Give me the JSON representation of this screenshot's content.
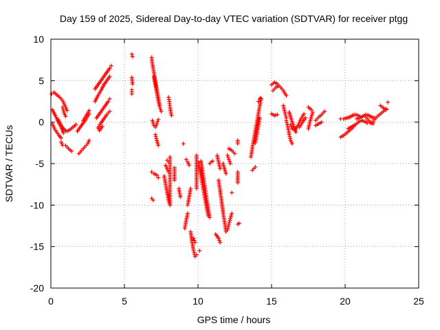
{
  "chart_data": {
    "type": "scatter",
    "title": "Day 159 of 2025, Sidereal Day-to-day VTEC variation (SDTVAR) for receiver ptgg",
    "xlabel": "GPS time / hours",
    "ylabel": "SDTVAR / TECUs",
    "xlim": [
      0,
      25
    ],
    "ylim": [
      -20,
      10
    ],
    "xticks": [
      0,
      5,
      10,
      15,
      20,
      25
    ],
    "yticks": [
      -20,
      -15,
      -10,
      -5,
      0,
      5,
      10
    ],
    "grid": true,
    "marker": "+",
    "series_color": "#ff0000",
    "segments": [
      [
        [
          0.05,
          3.4
        ],
        [
          0.2,
          3.6
        ],
        [
          0.4,
          3.3
        ],
        [
          0.6,
          3.0
        ],
        [
          0.8,
          2.6
        ],
        [
          0.95,
          2.0
        ],
        [
          1.1,
          1.4
        ]
      ],
      [
        [
          0.1,
          1.5
        ],
        [
          0.3,
          0.8
        ],
        [
          0.5,
          0.0
        ],
        [
          0.7,
          -0.6
        ],
        [
          0.85,
          -1.3
        ]
      ],
      [
        [
          0.1,
          -0.2
        ],
        [
          0.25,
          -0.8
        ],
        [
          0.4,
          -1.2
        ],
        [
          0.55,
          -1.6
        ],
        [
          0.7,
          -1.9
        ]
      ],
      [
        [
          0.7,
          -2.4
        ],
        [
          0.8,
          -2.8
        ]
      ],
      [
        [
          0.5,
          0.3
        ],
        [
          0.7,
          -0.4
        ],
        [
          0.9,
          -0.9
        ],
        [
          1.1,
          -1.1
        ],
        [
          1.3,
          -0.9
        ],
        [
          1.5,
          -0.6
        ],
        [
          1.7,
          -0.3
        ]
      ],
      [
        [
          0.8,
          1.8
        ],
        [
          0.9,
          1.1
        ],
        [
          1.0,
          0.7
        ]
      ],
      [
        [
          1.0,
          -2.8
        ],
        [
          1.2,
          -3.2
        ],
        [
          1.4,
          -3.5
        ]
      ],
      [
        [
          1.8,
          -1.1
        ],
        [
          2.0,
          -0.6
        ],
        [
          2.2,
          -0.1
        ],
        [
          2.4,
          0.4
        ],
        [
          2.6,
          1.0
        ]
      ],
      [
        [
          1.9,
          -3.8
        ],
        [
          2.1,
          -3.4
        ],
        [
          2.3,
          -3.0
        ],
        [
          2.5,
          -2.6
        ],
        [
          2.6,
          -2.2
        ]
      ],
      [
        [
          2.2,
          0.2
        ],
        [
          2.4,
          0.8
        ],
        [
          2.6,
          1.4
        ]
      ],
      [
        [
          3.0,
          4.0
        ],
        [
          3.2,
          4.5
        ],
        [
          3.4,
          5.0
        ],
        [
          3.6,
          5.5
        ],
        [
          3.8,
          6.0
        ],
        [
          4.0,
          6.5
        ],
        [
          4.1,
          6.8
        ]
      ],
      [
        [
          3.0,
          2.5
        ],
        [
          3.2,
          3.2
        ],
        [
          3.4,
          3.8
        ],
        [
          3.6,
          4.5
        ],
        [
          3.8,
          5.0
        ],
        [
          4.0,
          5.5
        ]
      ],
      [
        [
          3.1,
          0.5
        ],
        [
          3.3,
          1.0
        ],
        [
          3.5,
          1.5
        ],
        [
          3.7,
          2.0
        ],
        [
          3.9,
          2.5
        ],
        [
          4.0,
          2.8
        ]
      ],
      [
        [
          3.2,
          -0.7
        ],
        [
          3.4,
          -0.1
        ],
        [
          3.6,
          0.4
        ],
        [
          3.8,
          0.9
        ],
        [
          4.0,
          1.3
        ]
      ],
      [
        [
          3.3,
          -1.0
        ],
        [
          3.5,
          -0.5
        ]
      ],
      [
        [
          5.5,
          8.2
        ],
        [
          5.55,
          7.9
        ]
      ],
      [
        [
          5.5,
          5.4
        ],
        [
          5.55,
          4.6
        ]
      ],
      [
        [
          5.5,
          3.9
        ],
        [
          5.5,
          3.4
        ]
      ],
      [
        [
          6.85,
          7.8
        ],
        [
          6.9,
          7.0
        ],
        [
          7.0,
          6.0
        ],
        [
          7.1,
          5.0
        ],
        [
          7.2,
          4.0
        ],
        [
          7.3,
          3.0
        ],
        [
          7.4,
          2.0
        ]
      ],
      [
        [
          7.0,
          5.5
        ],
        [
          7.1,
          4.5
        ],
        [
          7.2,
          3.6
        ],
        [
          7.3,
          2.6
        ],
        [
          7.4,
          1.8
        ],
        [
          7.5,
          1.3
        ]
      ],
      [
        [
          6.9,
          0.2
        ],
        [
          7.0,
          -0.4
        ],
        [
          7.1,
          -0.6
        ],
        [
          7.2,
          -0.2
        ],
        [
          7.3,
          0.3
        ]
      ],
      [
        [
          7.1,
          -1.5
        ],
        [
          7.2,
          -2.2
        ],
        [
          7.3,
          -2.8
        ]
      ],
      [
        [
          6.85,
          -6.0
        ],
        [
          7.0,
          -6.2
        ],
        [
          7.2,
          -6.4
        ],
        [
          7.3,
          -6.7
        ]
      ],
      [
        [
          6.85,
          -9.2
        ],
        [
          6.95,
          -9.4
        ]
      ],
      [
        [
          7.7,
          -6.5
        ],
        [
          7.8,
          -7.5
        ],
        [
          7.9,
          -8.5
        ],
        [
          8.0,
          -9.5
        ],
        [
          8.1,
          -10.0
        ]
      ],
      [
        [
          7.8,
          -5.2
        ],
        [
          7.9,
          -5.6
        ],
        [
          8.0,
          -6.0
        ]
      ],
      [
        [
          7.9,
          -4.6
        ],
        [
          8.0,
          -4.8
        ]
      ],
      [
        [
          8.0,
          3.0
        ],
        [
          8.05,
          2.5
        ],
        [
          8.1,
          1.8
        ],
        [
          8.15,
          1.2
        ],
        [
          8.2,
          0.8
        ]
      ],
      [
        [
          8.1,
          -4.2
        ],
        [
          8.1,
          -6.0
        ],
        [
          8.1,
          -8.0
        ],
        [
          8.1,
          -10.0
        ]
      ],
      [
        [
          8.4,
          -5.5
        ],
        [
          8.4,
          -7.0
        ]
      ],
      [
        [
          8.7,
          -8.0
        ],
        [
          8.8,
          -9.0
        ]
      ],
      [
        [
          9.0,
          -2.6
        ]
      ],
      [
        [
          9.1,
          -12.8
        ],
        [
          9.2,
          -11.8
        ],
        [
          9.3,
          -11.0
        ]
      ],
      [
        [
          9.2,
          -4.5
        ],
        [
          9.3,
          -4.8
        ],
        [
          9.4,
          -5.2
        ]
      ],
      [
        [
          9.3,
          -10.0
        ],
        [
          9.4,
          -9.0
        ],
        [
          9.5,
          -8.0
        ]
      ],
      [
        [
          9.5,
          -13.2
        ],
        [
          9.6,
          -14.5
        ],
        [
          9.7,
          -15.5
        ],
        [
          9.8,
          -16.2
        ],
        [
          9.9,
          -16.0
        ]
      ],
      [
        [
          9.7,
          -14.0
        ],
        [
          9.8,
          -14.5
        ]
      ],
      [
        [
          9.9,
          -8.0
        ],
        [
          9.9,
          -6.0
        ],
        [
          9.9,
          -4.0
        ]
      ],
      [
        [
          10.1,
          -15.5
        ]
      ],
      [
        [
          10.0,
          -4.8
        ],
        [
          10.1,
          -5.5
        ],
        [
          10.2,
          -6.5
        ],
        [
          10.3,
          -7.5
        ],
        [
          10.4,
          -8.5
        ],
        [
          10.5,
          -9.5
        ],
        [
          10.6,
          -10.5
        ],
        [
          10.7,
          -11.3
        ]
      ],
      [
        [
          10.2,
          -4.7
        ],
        [
          10.3,
          -5.8
        ],
        [
          10.4,
          -7.0
        ],
        [
          10.5,
          -8.2
        ],
        [
          10.6,
          -9.4
        ],
        [
          10.7,
          -10.5
        ],
        [
          10.8,
          -11.5
        ]
      ],
      [
        [
          10.8,
          -5.0
        ],
        [
          10.9,
          -4.8
        ],
        [
          11.0,
          -4.7
        ]
      ],
      [
        [
          11.2,
          -13.5
        ],
        [
          11.4,
          -14.0
        ],
        [
          11.5,
          -14.5
        ]
      ],
      [
        [
          11.3,
          -4.0
        ],
        [
          11.4,
          -4.8
        ],
        [
          11.5,
          -5.6
        ]
      ],
      [
        [
          11.4,
          -7.0
        ],
        [
          11.5,
          -8.2
        ],
        [
          11.6,
          -9.5
        ],
        [
          11.7,
          -10.8
        ],
        [
          11.8,
          -12.0
        ],
        [
          11.9,
          -13.2
        ]
      ],
      [
        [
          11.7,
          -5.0
        ],
        [
          11.8,
          -5.6
        ],
        [
          11.9,
          -6.2
        ]
      ],
      [
        [
          12.0,
          -4.0
        ],
        [
          12.1,
          -4.5
        ],
        [
          12.2,
          -5.0
        ]
      ],
      [
        [
          12.0,
          -13.0
        ],
        [
          12.1,
          -12.3
        ],
        [
          12.2,
          -11.6
        ],
        [
          12.3,
          -11.0
        ]
      ],
      [
        [
          12.1,
          -3.2
        ],
        [
          12.3,
          -3.4
        ],
        [
          12.5,
          -3.8
        ]
      ],
      [
        [
          12.3,
          -8.5
        ]
      ],
      [
        [
          12.7,
          -2.2
        ],
        [
          12.7,
          -2.6
        ]
      ],
      [
        [
          12.7,
          -6.0
        ],
        [
          12.7,
          -7.3
        ]
      ],
      [
        [
          12.7,
          -12.3
        ],
        [
          12.8,
          -12.2
        ]
      ],
      [
        [
          13.6,
          -4.2
        ],
        [
          13.7,
          -3.0
        ],
        [
          13.8,
          -2.0
        ],
        [
          13.9,
          -1.0
        ],
        [
          14.0,
          0.0
        ],
        [
          14.1,
          1.0
        ],
        [
          14.2,
          2.0
        ],
        [
          14.3,
          2.8
        ]
      ],
      [
        [
          13.7,
          -5.8
        ],
        [
          13.8,
          -5.6
        ],
        [
          13.9,
          -5.4
        ]
      ],
      [
        [
          13.9,
          -2.5
        ],
        [
          14.0,
          -1.5
        ],
        [
          14.1,
          -0.5
        ],
        [
          14.2,
          0.5
        ]
      ],
      [
        [
          14.1,
          2.5
        ],
        [
          14.2,
          2.8
        ],
        [
          14.25,
          2.9
        ]
      ],
      [
        [
          15.0,
          4.5
        ],
        [
          15.2,
          4.8
        ],
        [
          15.4,
          4.6
        ],
        [
          15.6,
          4.2
        ],
        [
          15.8,
          3.8
        ],
        [
          16.0,
          3.2
        ]
      ],
      [
        [
          15.1,
          3.8
        ],
        [
          15.3,
          4.2
        ],
        [
          15.5,
          4.4
        ]
      ],
      [
        [
          15.0,
          1.0
        ],
        [
          15.2,
          0.8
        ],
        [
          15.4,
          0.9
        ]
      ],
      [
        [
          15.8,
          2.0
        ],
        [
          15.9,
          1.2
        ],
        [
          16.0,
          0.5
        ]
      ],
      [
        [
          16.0,
          0.2
        ],
        [
          16.1,
          -0.5
        ],
        [
          16.2,
          -1.5
        ],
        [
          16.3,
          -2.2
        ],
        [
          16.4,
          -2.6
        ]
      ],
      [
        [
          16.2,
          1.2
        ],
        [
          16.35,
          0.3
        ],
        [
          16.5,
          -0.5
        ],
        [
          16.65,
          -1.2
        ]
      ],
      [
        [
          16.3,
          -0.3
        ],
        [
          16.4,
          -0.8
        ],
        [
          16.6,
          -0.9
        ],
        [
          16.8,
          -0.4
        ],
        [
          17.0,
          0.4
        ],
        [
          17.2,
          1.0
        ]
      ],
      [
        [
          16.9,
          -0.6
        ],
        [
          17.1,
          0.0
        ],
        [
          17.3,
          0.5
        ]
      ],
      [
        [
          17.5,
          -0.8
        ],
        [
          17.6,
          0.0
        ],
        [
          17.7,
          0.6
        ],
        [
          17.8,
          1.2
        ]
      ],
      [
        [
          17.5,
          1.8
        ],
        [
          17.7,
          1.5
        ]
      ],
      [
        [
          18.0,
          0.2
        ],
        [
          18.2,
          0.6
        ],
        [
          18.4,
          0.9
        ],
        [
          18.6,
          1.3
        ]
      ],
      [
        [
          18.0,
          -0.4
        ],
        [
          18.2,
          -0.2
        ],
        [
          18.4,
          0.0
        ]
      ],
      [
        [
          19.7,
          0.4
        ],
        [
          19.9,
          0.4
        ],
        [
          20.1,
          0.5
        ],
        [
          20.3,
          0.6
        ],
        [
          20.5,
          0.8
        ],
        [
          20.7,
          0.9
        ],
        [
          20.9,
          0.8
        ],
        [
          21.1,
          0.6
        ]
      ],
      [
        [
          19.7,
          -1.8
        ],
        [
          19.9,
          -1.6
        ],
        [
          20.1,
          -1.3
        ],
        [
          20.3,
          -1.0
        ],
        [
          20.5,
          -0.7
        ],
        [
          20.7,
          -0.3
        ],
        [
          20.9,
          0.0
        ],
        [
          21.1,
          0.2
        ],
        [
          21.3,
          0.1
        ],
        [
          21.5,
          -0.1
        ],
        [
          21.7,
          -0.1
        ],
        [
          21.9,
          0.0
        ]
      ],
      [
        [
          20.2,
          -0.8
        ],
        [
          20.4,
          -0.6
        ],
        [
          20.6,
          -0.4
        ]
      ],
      [
        [
          20.8,
          0.4
        ],
        [
          21.0,
          0.5
        ],
        [
          21.2,
          0.7
        ],
        [
          21.4,
          0.9
        ],
        [
          21.6,
          0.8
        ],
        [
          21.8,
          0.6
        ],
        [
          22.0,
          0.5
        ]
      ],
      [
        [
          21.3,
          0.8
        ],
        [
          21.5,
          0.4
        ],
        [
          21.7,
          0.0
        ],
        [
          21.9,
          -0.2
        ]
      ],
      [
        [
          22.0,
          0.3
        ],
        [
          22.2,
          0.7
        ],
        [
          22.4,
          1.0
        ],
        [
          22.6,
          1.3
        ],
        [
          22.8,
          1.6
        ]
      ],
      [
        [
          22.4,
          2.0
        ],
        [
          22.6,
          1.7
        ],
        [
          22.8,
          1.5
        ]
      ],
      [
        [
          22.9,
          2.4
        ]
      ]
    ]
  }
}
